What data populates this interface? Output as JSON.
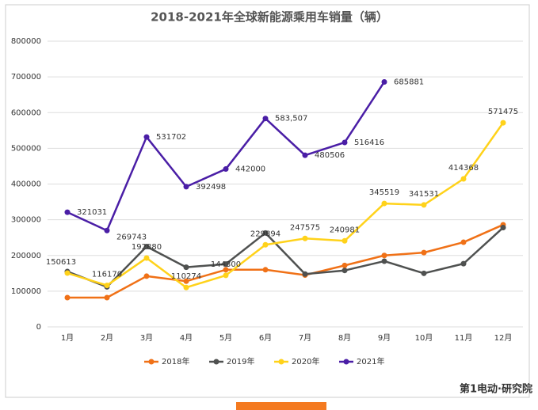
{
  "chart_data": {
    "type": "line",
    "title": "2018-2021年全球新能源乘用车销量（辆）",
    "categories": [
      "1月",
      "2月",
      "3月",
      "4月",
      "5月",
      "6月",
      "7月",
      "8月",
      "9月",
      "10月",
      "11月",
      "12月"
    ],
    "series": [
      {
        "name": "2018年",
        "color": "#f07117",
        "values": [
          82000,
          82000,
          142000,
          128000,
          160000,
          160000,
          145000,
          172000,
          200000,
          208000,
          237000,
          286000
        ]
      },
      {
        "name": "2019年",
        "color": "#4f5150",
        "values": [
          155000,
          112000,
          225000,
          167000,
          176000,
          263000,
          148000,
          158000,
          184000,
          150000,
          177000,
          278000
        ]
      },
      {
        "name": "2020年",
        "color": "#ffd21a",
        "values": [
          150613,
          116170,
          192880,
          110274,
          144300,
          229894,
          247575,
          240981,
          345519,
          341531,
          414368,
          571475
        ]
      },
      {
        "name": "2021年",
        "color": "#4a1ea6",
        "values": [
          321031,
          269743,
          531702,
          392498,
          442000,
          583507,
          480506,
          516416,
          685881,
          null,
          null,
          null
        ],
        "value_labels": [
          "321031",
          "269743",
          "531702",
          "392498",
          "442000",
          "583,507",
          "480506",
          "516416",
          "685881",
          null,
          null,
          null
        ]
      }
    ],
    "ylim": [
      0,
      800000
    ],
    "yticks": [
      0,
      100000,
      200000,
      300000,
      400000,
      500000,
      600000,
      700000,
      800000
    ],
    "grid": true,
    "legend": "bottom",
    "footer": "第1电动·研究院"
  }
}
